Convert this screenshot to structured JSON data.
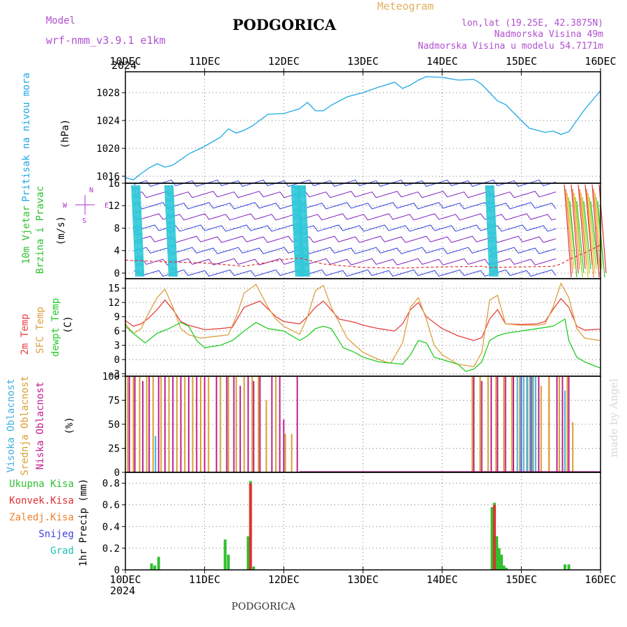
{
  "header": {
    "model_label": "Model",
    "model_name": "wrf-nmm_v3.9.1  e1km",
    "title": "PODGORICA",
    "meteogram": "Meteogram",
    "lonlat": "lon,lat (19.25E, 42.3875N)",
    "altitude": "Nadmorska Visina 49m",
    "model_altitude": "Nadmorska Visina u modelu 54.7171m",
    "year_top": "2024",
    "year_bottom": "2024",
    "footer_title": "PODGORICA",
    "watermark": "made by Angel"
  },
  "colors": {
    "pressure": "#1ea8e6",
    "t2m": "#e84040",
    "sfc": "#dca040",
    "dewpt": "#22cc22",
    "high_cloud": "#40b0e0",
    "mid_cloud": "#d8a030",
    "low_cloud": "#c02090",
    "precip_total": "#30c030",
    "precip_conv": "#e03030",
    "precip_frz": "#f08030",
    "snow": "#4040e0",
    "hail": "#20c0b0",
    "wind_label": "#30c030",
    "wind_axis_label": "#b030d0"
  },
  "chart_data": [
    {
      "panel": "pressure",
      "type": "line",
      "ylabel": [
        "Pritisak na nivou mora",
        "(hPa)"
      ],
      "x_ticks": [
        "10DEC",
        "11DEC",
        "12DEC",
        "13DEC",
        "14DEC",
        "15DEC",
        "16DEC"
      ],
      "ylim": [
        1015,
        1031
      ],
      "yticks": [
        1016,
        1020,
        1024,
        1028
      ],
      "grid": true,
      "series": [
        {
          "color_key": "pressure",
          "x": [
            0,
            0.1,
            0.2,
            0.3,
            0.4,
            0.5,
            0.6,
            0.8,
            1.0,
            1.2,
            1.3,
            1.4,
            1.5,
            1.6,
            1.8,
            2.0,
            2.2,
            2.3,
            2.4,
            2.5,
            2.6,
            2.8,
            3.0,
            3.2,
            3.4,
            3.5,
            3.6,
            3.7,
            3.8,
            4.0,
            4.2,
            4.4,
            4.5,
            4.6,
            4.7,
            4.8,
            5.0,
            5.1,
            5.2,
            5.3,
            5.4,
            5.5,
            5.6,
            5.8,
            6.0
          ],
          "values": [
            1015.8,
            1015.5,
            1016.4,
            1017.2,
            1017.8,
            1017.3,
            1017.6,
            1019.2,
            1020.3,
            1021.6,
            1022.8,
            1022.2,
            1022.6,
            1023.2,
            1024.9,
            1025.0,
            1025.7,
            1026.6,
            1025.4,
            1025.4,
            1026.2,
            1027.4,
            1028.0,
            1028.8,
            1029.5,
            1028.6,
            1029.1,
            1029.8,
            1030.3,
            1030.2,
            1029.8,
            1029.9,
            1029.2,
            1028.0,
            1026.8,
            1026.3,
            1024.0,
            1022.9,
            1022.6,
            1022.3,
            1022.5,
            1022.0,
            1022.4,
            1025.6,
            1028.3
          ]
        }
      ]
    },
    {
      "panel": "wind",
      "type": "line",
      "ylabel": [
        "10m Vjetar",
        "Brzina i Pravac",
        "(m/s)"
      ],
      "compass": [
        "N",
        "W",
        "E",
        "S"
      ],
      "ylim": [
        -1,
        16
      ],
      "yticks": [
        0,
        4,
        8,
        12,
        16
      ],
      "grid": true,
      "series": [
        {
          "name": "wind speed",
          "x": [
            0,
            0.5,
            1.0,
            1.5,
            2.0,
            2.2,
            2.5,
            3.0,
            3.5,
            4.0,
            4.5,
            4.6,
            5.0,
            5.4,
            5.5,
            5.6,
            5.8,
            6.0
          ],
          "values": [
            2.3,
            2.0,
            1.8,
            1.2,
            2.4,
            2.7,
            1.6,
            1.0,
            0.9,
            1.1,
            1.2,
            1.0,
            1.1,
            1.2,
            1.6,
            2.4,
            3.6,
            5.0
          ]
        }
      ]
    },
    {
      "panel": "temperature",
      "type": "line",
      "ylabel": [
        "2m Temp",
        "SFC Temp",
        "dewpt Temp",
        "(C)"
      ],
      "ylim": [
        -3.5,
        17
      ],
      "yticks": [
        -3,
        0,
        3,
        6,
        9,
        12,
        15
      ],
      "grid": true,
      "series": [
        {
          "name": "2m Temp",
          "color_key": "t2m",
          "x": [
            0,
            0.1,
            0.2,
            0.3,
            0.4,
            0.5,
            0.6,
            0.7,
            0.8,
            1.0,
            1.2,
            1.35,
            1.5,
            1.7,
            1.9,
            2.0,
            2.2,
            2.3,
            2.4,
            2.5,
            2.7,
            2.9,
            3.0,
            3.2,
            3.4,
            3.5,
            3.6,
            3.7,
            3.8,
            4.0,
            4.2,
            4.4,
            4.5,
            4.6,
            4.7,
            4.8,
            5.0,
            5.2,
            5.3,
            5.4,
            5.5,
            5.6,
            5.7,
            5.8,
            6.0
          ],
          "values": [
            8.2,
            7.0,
            7.5,
            8.8,
            10.5,
            12.5,
            10.5,
            8.0,
            7.2,
            6.3,
            6.5,
            6.8,
            11.0,
            12.3,
            9.0,
            8.0,
            7.5,
            9.0,
            11.0,
            12.3,
            8.5,
            7.8,
            7.2,
            6.5,
            6.0,
            7.5,
            10.5,
            12.0,
            9.0,
            6.5,
            5.0,
            4.0,
            4.6,
            8.5,
            10.5,
            7.5,
            7.4,
            7.5,
            8.0,
            10.5,
            12.8,
            11.0,
            7.0,
            6.2,
            6.4
          ]
        },
        {
          "name": "SFC Temp",
          "color_key": "sfc",
          "x": [
            0,
            0.1,
            0.2,
            0.3,
            0.4,
            0.5,
            0.6,
            0.7,
            0.8,
            0.95,
            1.1,
            1.3,
            1.4,
            1.5,
            1.65,
            1.8,
            1.9,
            2.0,
            2.2,
            2.3,
            2.4,
            2.5,
            2.6,
            2.8,
            3.0,
            3.2,
            3.35,
            3.5,
            3.6,
            3.7,
            3.8,
            3.9,
            4.0,
            4.2,
            4.4,
            4.5,
            4.6,
            4.7,
            4.8,
            5.0,
            5.2,
            5.3,
            5.4,
            5.5,
            5.6,
            5.7,
            5.8,
            6.0
          ],
          "values": [
            7.5,
            5.5,
            6.5,
            10.0,
            13.0,
            14.8,
            11.0,
            6.5,
            5.2,
            4.5,
            4.8,
            5.2,
            9.0,
            14.0,
            15.8,
            11.0,
            8.5,
            7.0,
            5.3,
            9.0,
            14.5,
            15.6,
            11.0,
            4.5,
            1.5,
            0.0,
            -0.8,
            3.5,
            11.0,
            13.0,
            8.5,
            3.0,
            1.0,
            -1.0,
            -1.5,
            1.5,
            12.5,
            13.5,
            7.5,
            7.2,
            7.2,
            7.5,
            11.0,
            16.0,
            13.0,
            6.5,
            4.5,
            4.0
          ]
        },
        {
          "name": "dewpt Temp",
          "color_key": "dewpt",
          "x": [
            0,
            0.1,
            0.25,
            0.4,
            0.55,
            0.7,
            0.8,
            0.9,
            1.0,
            1.2,
            1.35,
            1.5,
            1.65,
            1.8,
            2.0,
            2.2,
            2.3,
            2.4,
            2.5,
            2.6,
            2.75,
            2.9,
            3.0,
            3.2,
            3.4,
            3.5,
            3.6,
            3.7,
            3.8,
            3.9,
            4.0,
            4.1,
            4.2,
            4.3,
            4.4,
            4.5,
            4.6,
            4.7,
            4.8,
            5.0,
            5.2,
            5.4,
            5.55,
            5.6,
            5.7,
            5.8,
            6.0
          ],
          "values": [
            7.0,
            5.5,
            3.5,
            5.5,
            6.5,
            7.8,
            7.0,
            4.0,
            2.5,
            3.0,
            4.0,
            6.0,
            7.8,
            6.5,
            6.0,
            4.0,
            5.0,
            6.5,
            7.0,
            6.5,
            2.5,
            1.5,
            0.5,
            -0.5,
            -0.8,
            -1.0,
            1.0,
            4.0,
            3.5,
            0.5,
            0.0,
            -0.5,
            -1.0,
            -2.5,
            -2.0,
            -0.5,
            4.0,
            5.0,
            5.5,
            6.0,
            6.5,
            7.0,
            8.5,
            4.0,
            0.5,
            -0.5,
            -1.8
          ]
        }
      ]
    },
    {
      "panel": "clouds",
      "type": "bar",
      "ylabel": [
        "Visoka Oblacnost",
        "Srednja Oblacnost",
        "Niska Oblacnost",
        "(%)"
      ],
      "ylim": [
        0,
        100
      ],
      "yticks": [
        0,
        25,
        50,
        75,
        100
      ],
      "grid": true,
      "series": [
        {
          "name": "Niska Oblacnost",
          "color_key": "low_cloud",
          "x": [
            0.05,
            0.12,
            0.22,
            0.3,
            0.42,
            0.5,
            0.6,
            0.7,
            0.8,
            0.9,
            1.0,
            1.15,
            1.28,
            1.37,
            1.45,
            1.55,
            1.62,
            1.7,
            1.85,
            1.95,
            2.0,
            2.17,
            4.4,
            4.5,
            4.62,
            4.7,
            4.8,
            4.9,
            5.0,
            5.12,
            5.22,
            5.35,
            5.45,
            5.52,
            5.6
          ],
          "values": [
            100,
            100,
            95,
            100,
            100,
            100,
            100,
            100,
            100,
            100,
            100,
            100,
            100,
            100,
            90,
            100,
            95,
            100,
            100,
            100,
            55,
            100,
            100,
            95,
            100,
            100,
            100,
            100,
            100,
            100,
            100,
            100,
            100,
            100,
            100
          ]
        },
        {
          "name": "Srednja Oblacnost",
          "color_key": "mid_cloud",
          "x": [
            0.03,
            0.1,
            0.18,
            0.27,
            0.35,
            0.45,
            0.55,
            0.65,
            0.75,
            0.85,
            0.95,
            1.05,
            1.2,
            1.3,
            1.4,
            1.5,
            1.6,
            1.68,
            1.78,
            1.9,
            2.02,
            2.1,
            4.38,
            4.48,
            4.58,
            4.68,
            4.78,
            4.88,
            4.98,
            5.08,
            5.15,
            5.25,
            5.35,
            5.48,
            5.58,
            5.65
          ],
          "values": [
            100,
            100,
            100,
            100,
            100,
            100,
            100,
            100,
            100,
            100,
            100,
            100,
            100,
            100,
            100,
            100,
            100,
            100,
            75,
            100,
            40,
            40,
            100,
            100,
            100,
            100,
            100,
            100,
            100,
            100,
            100,
            90,
            100,
            100,
            100,
            52
          ]
        },
        {
          "name": "Visoka Oblacnost",
          "color_key": "high_cloud",
          "x": [
            0.38,
            4.95,
            4.99,
            5.03,
            5.07,
            5.11,
            5.14,
            5.18,
            5.55
          ],
          "values": [
            38,
            100,
            100,
            100,
            100,
            100,
            100,
            100,
            85
          ]
        }
      ]
    },
    {
      "panel": "precipitation",
      "type": "bar",
      "ylabel": [
        "1hr Precip (mm)"
      ],
      "legend": [
        "Ukupna Kisa",
        "Konvek.Kisa",
        "Zaledj.Kisa",
        "Snijeg",
        "Grad"
      ],
      "x_ticks": [
        "10DEC",
        "11DEC",
        "12DEC",
        "13DEC",
        "14DEC",
        "15DEC",
        "16DEC"
      ],
      "ylim": [
        0,
        0.9
      ],
      "yticks": [
        0,
        0.2,
        0.4,
        0.6,
        0.8
      ],
      "grid": true,
      "series": [
        {
          "name": "Ukupna Kisa",
          "color_key": "precip_total",
          "x": [
            0.33,
            0.37,
            0.42,
            1.26,
            1.3,
            1.55,
            1.58,
            1.62,
            4.63,
            4.66,
            4.69,
            4.72,
            4.75,
            4.78,
            4.81,
            5.55,
            5.6
          ],
          "values": [
            0.06,
            0.04,
            0.12,
            0.28,
            0.14,
            0.31,
            0.82,
            0.03,
            0.58,
            0.62,
            0.31,
            0.2,
            0.14,
            0.04,
            0.02,
            0.05,
            0.05
          ]
        },
        {
          "name": "Konvek.Kisa",
          "color_key": "precip_conv",
          "x": [
            1.58,
            4.66
          ],
          "values": [
            0.8,
            0.6
          ]
        }
      ]
    }
  ]
}
